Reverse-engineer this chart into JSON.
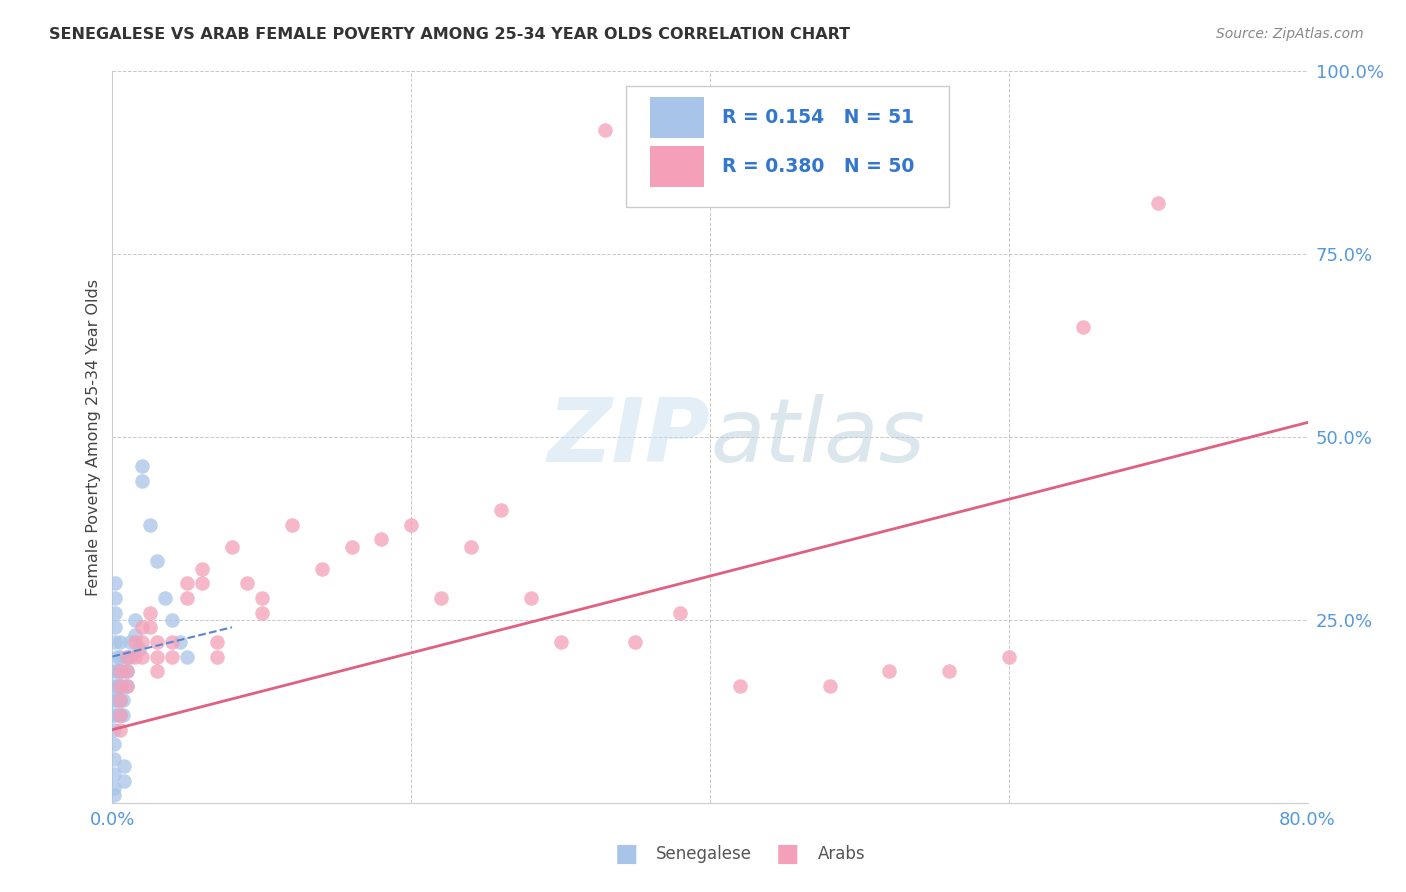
{
  "title": "SENEGALESE VS ARAB FEMALE POVERTY AMONG 25-34 YEAR OLDS CORRELATION CHART",
  "source": "Source: ZipAtlas.com",
  "ylabel": "Female Poverty Among 25-34 Year Olds",
  "xlim": [
    0.0,
    0.8
  ],
  "ylim": [
    0.0,
    1.0
  ],
  "senegalese_R": 0.154,
  "senegalese_N": 51,
  "arabs_R": 0.38,
  "arabs_N": 50,
  "senegalese_color": "#a8c4e8",
  "arabs_color": "#f4a0b8",
  "senegalese_line_color": "#5588cc",
  "arabs_line_color": "#e06080",
  "senegalese_x": [
    0.001,
    0.001,
    0.001,
    0.001,
    0.001,
    0.001,
    0.001,
    0.001,
    0.001,
    0.001,
    0.003,
    0.003,
    0.003,
    0.003,
    0.003,
    0.005,
    0.005,
    0.005,
    0.005,
    0.005,
    0.005,
    0.007,
    0.007,
    0.007,
    0.007,
    0.01,
    0.01,
    0.01,
    0.012,
    0.012,
    0.015,
    0.015,
    0.018,
    0.02,
    0.02,
    0.025,
    0.03,
    0.035,
    0.04,
    0.045,
    0.05,
    0.002,
    0.002,
    0.002,
    0.002,
    0.002,
    0.004,
    0.004,
    0.004,
    0.008,
    0.008
  ],
  "senegalese_y": [
    0.18,
    0.16,
    0.14,
    0.12,
    0.1,
    0.08,
    0.06,
    0.04,
    0.02,
    0.01,
    0.2,
    0.18,
    0.16,
    0.14,
    0.12,
    0.22,
    0.2,
    0.18,
    0.16,
    0.14,
    0.12,
    0.18,
    0.16,
    0.14,
    0.12,
    0.2,
    0.18,
    0.16,
    0.22,
    0.2,
    0.25,
    0.23,
    0.21,
    0.46,
    0.44,
    0.38,
    0.33,
    0.28,
    0.25,
    0.22,
    0.2,
    0.3,
    0.28,
    0.26,
    0.24,
    0.22,
    0.18,
    0.16,
    0.14,
    0.05,
    0.03
  ],
  "arabs_x": [
    0.005,
    0.005,
    0.005,
    0.005,
    0.005,
    0.01,
    0.01,
    0.01,
    0.015,
    0.015,
    0.02,
    0.02,
    0.02,
    0.025,
    0.025,
    0.03,
    0.03,
    0.03,
    0.04,
    0.04,
    0.05,
    0.05,
    0.06,
    0.06,
    0.07,
    0.07,
    0.08,
    0.09,
    0.1,
    0.1,
    0.12,
    0.14,
    0.16,
    0.18,
    0.2,
    0.22,
    0.24,
    0.26,
    0.28,
    0.3,
    0.35,
    0.38,
    0.42,
    0.48,
    0.52,
    0.56,
    0.6,
    0.65,
    0.7,
    0.33
  ],
  "arabs_y": [
    0.18,
    0.16,
    0.14,
    0.12,
    0.1,
    0.2,
    0.18,
    0.16,
    0.22,
    0.2,
    0.24,
    0.22,
    0.2,
    0.26,
    0.24,
    0.22,
    0.2,
    0.18,
    0.22,
    0.2,
    0.3,
    0.28,
    0.32,
    0.3,
    0.22,
    0.2,
    0.35,
    0.3,
    0.28,
    0.26,
    0.38,
    0.32,
    0.35,
    0.36,
    0.38,
    0.28,
    0.35,
    0.4,
    0.28,
    0.22,
    0.22,
    0.26,
    0.16,
    0.16,
    0.18,
    0.18,
    0.2,
    0.65,
    0.82,
    0.92
  ],
  "senegalese_line_x": [
    0.0,
    0.08
  ],
  "senegalese_line_y": [
    0.2,
    0.24
  ],
  "arabs_line_x": [
    0.0,
    0.8
  ],
  "arabs_line_y": [
    0.1,
    0.52
  ]
}
